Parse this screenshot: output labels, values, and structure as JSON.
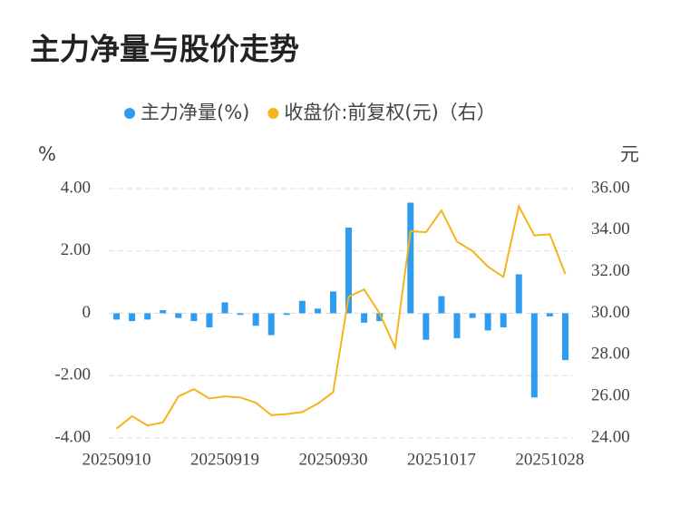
{
  "chart_data": {
    "type": "bar_line",
    "title": "主力净量与股价走势",
    "y_unit": "%",
    "y2_unit": "元",
    "categories": [
      "20250910",
      null,
      null,
      null,
      null,
      null,
      null,
      "20250919",
      null,
      null,
      null,
      null,
      null,
      null,
      "20250930",
      null,
      null,
      null,
      null,
      null,
      null,
      "20251017",
      null,
      null,
      null,
      null,
      null,
      null,
      "20251028",
      null
    ],
    "series": [
      {
        "name": "主力净量(%)",
        "color": "#2e9cf0",
        "kind": "bar",
        "axis": "y",
        "values": [
          -0.2,
          -0.25,
          -0.2,
          0.1,
          -0.15,
          -0.25,
          -0.45,
          0.35,
          -0.05,
          -0.4,
          -0.7,
          -0.05,
          0.4,
          0.15,
          0.7,
          2.75,
          -0.3,
          -0.25,
          0,
          3.55,
          -0.85,
          0.55,
          -0.8,
          -0.15,
          -0.55,
          -0.45,
          1.25,
          -2.7,
          -0.1,
          -1.5
        ]
      },
      {
        "name": "收盘价:前复权(元)（右）",
        "color": "#f5b31c",
        "kind": "line",
        "axis": "y2",
        "values": [
          24.45,
          25.05,
          24.6,
          24.75,
          26.0,
          26.35,
          25.9,
          26.0,
          25.95,
          25.7,
          25.1,
          25.15,
          25.25,
          25.65,
          26.2,
          30.8,
          31.15,
          30.0,
          28.35,
          33.95,
          33.9,
          34.95,
          33.45,
          33.0,
          32.25,
          31.75,
          35.15,
          33.75,
          33.8,
          31.9
        ]
      }
    ],
    "ylim": [
      -4,
      4
    ],
    "yticks": [
      {
        "value": -4,
        "label": "-4.00"
      },
      {
        "value": -2,
        "label": "-2.00"
      },
      0,
      {
        "value": 2,
        "label": "2.00"
      },
      {
        "value": 4,
        "label": "4.00"
      }
    ],
    "y2lim": [
      24,
      36
    ],
    "y2ticks": [
      {
        "value": 24,
        "label": "24.00"
      },
      {
        "value": 26,
        "label": "26.00"
      },
      {
        "value": 28,
        "label": "28.00"
      },
      {
        "value": 30,
        "label": "30.00"
      },
      {
        "value": 32,
        "label": "32.00"
      },
      {
        "value": 34,
        "label": "34.00"
      },
      {
        "value": 36,
        "label": "36.00"
      }
    ],
    "grid": true,
    "legend": "top"
  }
}
